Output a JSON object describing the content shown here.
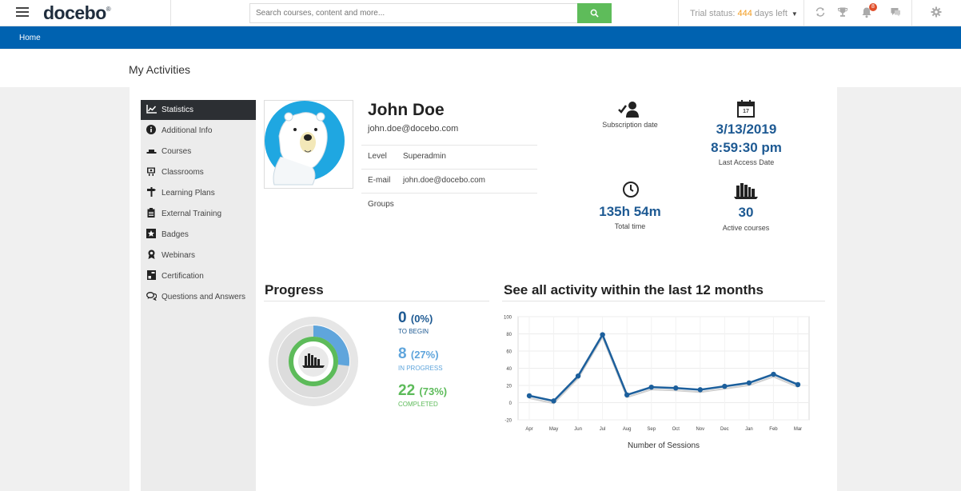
{
  "topbar": {
    "logo": "docebo",
    "logo_mark": "®",
    "search_placeholder": "Search courses, content and more...",
    "trial_prefix": "Trial status: ",
    "trial_days": "444",
    "trial_suffix": " days left",
    "notification_count": "8"
  },
  "nav": {
    "home": "Home"
  },
  "page": {
    "title": "My Activities"
  },
  "sidebar": {
    "items": [
      {
        "label": "Statistics",
        "icon": "chart-icon"
      },
      {
        "label": "Additional Info",
        "icon": "info-icon"
      },
      {
        "label": "Courses",
        "icon": "graduation-cap-icon"
      },
      {
        "label": "Classrooms",
        "icon": "classroom-icon"
      },
      {
        "label": "Learning Plans",
        "icon": "signpost-icon"
      },
      {
        "label": "External Training",
        "icon": "clipboard-icon"
      },
      {
        "label": "Badges",
        "icon": "badge-icon"
      },
      {
        "label": "Webinars",
        "icon": "webinar-icon"
      },
      {
        "label": "Certification",
        "icon": "certificate-icon"
      },
      {
        "label": "Questions and Answers",
        "icon": "comments-icon"
      }
    ]
  },
  "profile": {
    "name": "John Doe",
    "email": "john.doe@docebo.com",
    "level_label": "Level",
    "level_value": "Superadmin",
    "email_label": "E-mail",
    "email_value": "john.doe@docebo.com",
    "groups_label": "Groups"
  },
  "stats": {
    "subscription_label": "Subscription date",
    "last_access_date": "3/13/2019",
    "last_access_time": "8:59:30 pm",
    "last_access_label": "Last Access Date",
    "calendar_day": "17",
    "total_time": "135h 54m",
    "total_time_label": "Total time",
    "active_courses": "30",
    "active_courses_label": "Active courses"
  },
  "progress": {
    "title": "Progress",
    "to_begin_count": "0",
    "to_begin_pct": "(0%)",
    "to_begin_label": "TO BEGIN",
    "in_progress_count": "8",
    "in_progress_pct": "(27%)",
    "in_progress_label": "IN PROGRESS",
    "completed_count": "22",
    "completed_pct": "(73%)",
    "completed_label": "COMPLETED",
    "in_progress_fraction": 0.27,
    "completed_fraction": 0.73,
    "colors": {
      "in_progress": "#5fa5dc",
      "completed": "#5dbb5a",
      "track": "#dcdcdc"
    }
  },
  "activity": {
    "title": "See all activity within the last 12 months"
  },
  "chart_data": {
    "type": "line",
    "title": "See all activity within the last 12 months",
    "xlabel": "Number of Sessions",
    "ylabel": "",
    "categories": [
      "Apr",
      "May",
      "Jun",
      "Jul",
      "Aug",
      "Sep",
      "Oct",
      "Nov",
      "Dec",
      "Jan",
      "Feb",
      "Mar"
    ],
    "values": [
      8,
      2,
      31,
      79,
      9,
      18,
      17,
      15,
      19,
      23,
      33,
      21
    ],
    "ylim": [
      -20,
      100
    ],
    "yticks": [
      -20,
      0,
      20,
      40,
      60,
      80,
      100
    ],
    "grid": true,
    "color": "#1c5f9c"
  }
}
